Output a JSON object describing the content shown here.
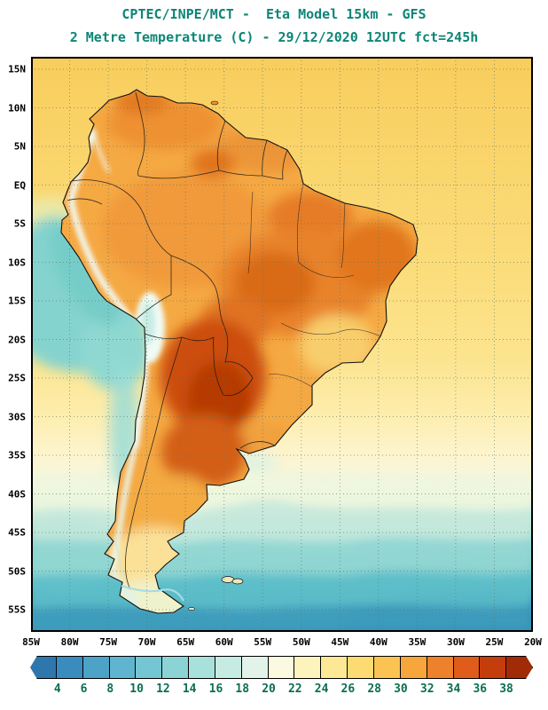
{
  "header": {
    "title_line1": "CPTEC/INPE/MCT -  Eta Model 15km - GFS",
    "title_line2": "2 Metre Temperature (C) - 29/12/2020 12UTC fct=245h",
    "title_color": "#0e8577"
  },
  "map": {
    "lat_ticks": [
      "15N",
      "10N",
      "5N",
      "EQ",
      "5S",
      "10S",
      "15S",
      "20S",
      "25S",
      "30S",
      "35S",
      "40S",
      "45S",
      "50S",
      "55S"
    ],
    "lon_ticks": [
      "85W",
      "80W",
      "75W",
      "70W",
      "65W",
      "60W",
      "55W",
      "50W",
      "45W",
      "40W",
      "35W",
      "30W",
      "25W",
      "20W"
    ]
  },
  "colorbar": {
    "tick_labels": [
      "4",
      "6",
      "8",
      "10",
      "12",
      "14",
      "16",
      "18",
      "20",
      "22",
      "24",
      "26",
      "28",
      "30",
      "32",
      "34",
      "36",
      "38"
    ],
    "colors": [
      "#2e77ad",
      "#3b8cbe",
      "#4da2c8",
      "#5fb5cf",
      "#74c6d2",
      "#8cd3d6",
      "#a8e0dc",
      "#c6ebe3",
      "#e2f4ea",
      "#fbf9e0",
      "#fdf3bc",
      "#fde995",
      "#fcdb72",
      "#fbc452",
      "#f7a63c",
      "#ee812b",
      "#df5c1a",
      "#c43d0c",
      "#a12b06"
    ],
    "label_color": "#0b6e52"
  }
}
